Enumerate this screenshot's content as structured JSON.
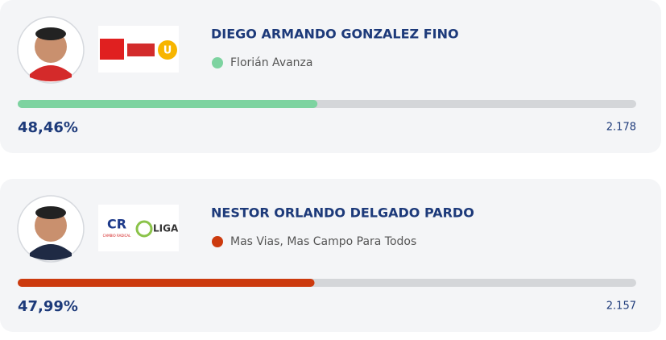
{
  "candidates": [
    {
      "name": "DIEGO ARMANDO GONZALEZ FINO",
      "party": "Florián Avanza",
      "party_color": "#7dd3a0",
      "bar_color": "#7dd3a0",
      "percent": 48.46,
      "percent_label": "48,46%",
      "votes_label": "2.178",
      "logo_texts": [
        "U"
      ]
    },
    {
      "name": "NESTOR ORLANDO DELGADO PARDO",
      "party": "Mas Vias, Mas Campo Para Todos",
      "party_color": "#cc3a0e",
      "bar_color": "#cc3a0e",
      "percent": 47.99,
      "percent_label": "47,99%",
      "votes_label": "2.157",
      "logo_texts": [
        "CR",
        "CAMBIO RADICAL",
        "LIGA"
      ]
    }
  ],
  "bar_max": 100
}
